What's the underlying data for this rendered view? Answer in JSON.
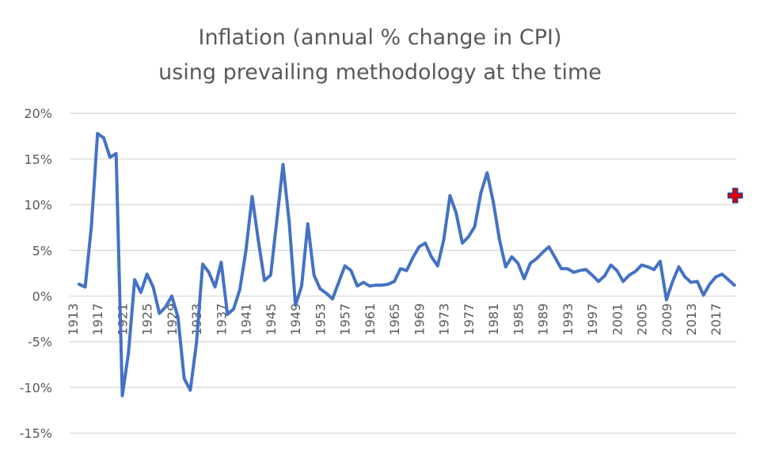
{
  "chart_data": {
    "type": "line",
    "title": "Inflation (annual % change in CPI)",
    "subtitle": "using prevailing methodology at the time",
    "xlabel": "",
    "ylabel": "",
    "ylim": [
      -15,
      20
    ],
    "y_ticks": [
      "-15%",
      "-10%",
      "-5%",
      "0%",
      "5%",
      "10%",
      "15%",
      "20%"
    ],
    "y_tick_values": [
      -15,
      -10,
      -5,
      0,
      5,
      10,
      15,
      20
    ],
    "x_range": [
      1913,
      2020
    ],
    "x_tick_years": [
      1913,
      1917,
      1921,
      1925,
      1929,
      1933,
      1937,
      1941,
      1945,
      1949,
      1953,
      1957,
      1961,
      1965,
      1969,
      1973,
      1977,
      1981,
      1985,
      1989,
      1993,
      1997,
      2001,
      2005,
      2009,
      2013,
      2017
    ],
    "grid": true,
    "legend": "none",
    "series": [
      {
        "color": "#4472C4",
        "x": [
          1914,
          1915,
          1916,
          1917,
          1918,
          1919,
          1920,
          1921,
          1922,
          1923,
          1924,
          1925,
          1926,
          1927,
          1928,
          1929,
          1930,
          1931,
          1932,
          1933,
          1934,
          1935,
          1936,
          1937,
          1938,
          1939,
          1940,
          1941,
          1942,
          1943,
          1944,
          1945,
          1946,
          1947,
          1948,
          1949,
          1950,
          1951,
          1952,
          1953,
          1954,
          1955,
          1956,
          1957,
          1958,
          1959,
          1960,
          1961,
          1962,
          1963,
          1964,
          1965,
          1966,
          1967,
          1968,
          1969,
          1970,
          1971,
          1972,
          1973,
          1974,
          1975,
          1976,
          1977,
          1978,
          1979,
          1980,
          1981,
          1982,
          1983,
          1984,
          1985,
          1986,
          1987,
          1988,
          1989,
          1990,
          1991,
          1992,
          1993,
          1994,
          1995,
          1996,
          1997,
          1998,
          1999,
          2000,
          2001,
          2002,
          2003,
          2004,
          2005,
          2006,
          2007,
          2008,
          2009,
          2010,
          2011,
          2012,
          2013,
          2014,
          2015,
          2016,
          2017,
          2018,
          2019,
          2020
        ],
        "values": [
          1.3,
          1.0,
          7.6,
          17.8,
          17.3,
          15.2,
          15.6,
          -10.9,
          -6.2,
          1.8,
          0.4,
          2.4,
          1.0,
          -1.9,
          -1.2,
          0.0,
          -2.3,
          -9.0,
          -10.3,
          -5.1,
          3.5,
          2.6,
          1.0,
          3.7,
          -2.0,
          -1.4,
          0.7,
          5.0,
          10.9,
          6.1,
          1.7,
          2.3,
          8.3,
          14.4,
          8.1,
          -1.0,
          1.1,
          7.9,
          2.3,
          0.8,
          0.3,
          -0.3,
          1.5,
          3.3,
          2.8,
          1.1,
          1.5,
          1.1,
          1.2,
          1.2,
          1.3,
          1.6,
          3.0,
          2.8,
          4.2,
          5.4,
          5.8,
          4.3,
          3.3,
          6.2,
          11.0,
          9.1,
          5.8,
          6.5,
          7.6,
          11.3,
          13.5,
          10.3,
          6.2,
          3.2,
          4.3,
          3.6,
          1.9,
          3.6,
          4.1,
          4.8,
          5.4,
          4.2,
          3.0,
          3.0,
          2.6,
          2.8,
          2.9,
          2.3,
          1.6,
          2.2,
          3.4,
          2.8,
          1.6,
          2.3,
          2.7,
          3.4,
          3.2,
          2.9,
          3.8,
          -0.4,
          1.6,
          3.2,
          2.1,
          1.5,
          1.6,
          0.1,
          1.3,
          2.1,
          2.4,
          1.8,
          1.2
        ]
      },
      {
        "color": "#E00000",
        "marker": "cross",
        "x": [
          2020
        ],
        "values": [
          11.0
        ]
      }
    ]
  }
}
